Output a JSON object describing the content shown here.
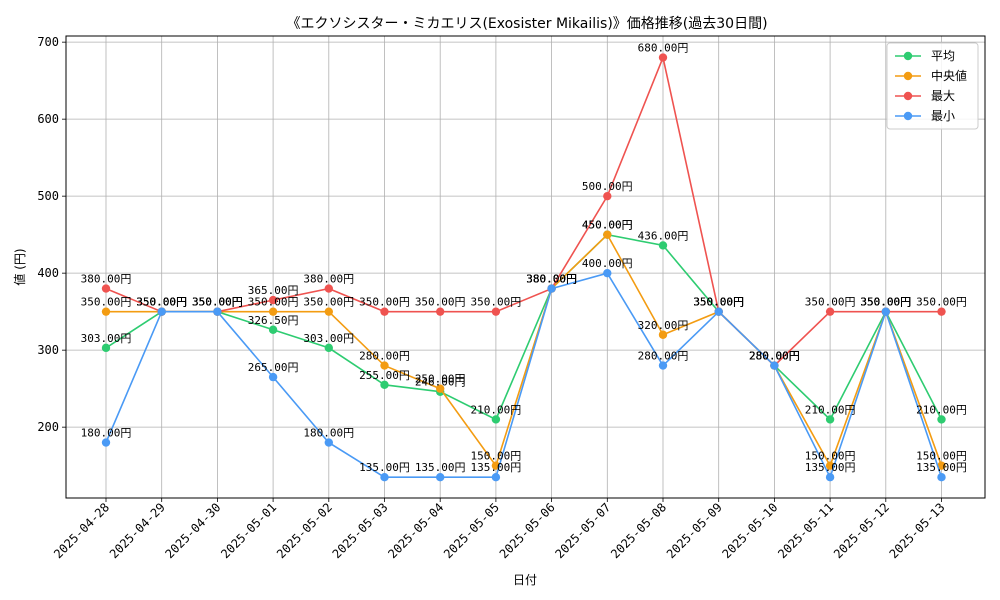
{
  "chart_data": {
    "type": "line",
    "title": "《エクソシスター・ミカエリス(Exosister Mikailis)》価格推移(過去30日間)",
    "xlabel": "日付",
    "ylabel": "値 (円)",
    "categories": [
      "2025-04-28",
      "2025-04-29",
      "2025-04-30",
      "2025-05-01",
      "2025-05-02",
      "2025-05-03",
      "2025-05-04",
      "2025-05-05",
      "2025-05-06",
      "2025-05-07",
      "2025-05-08",
      "2025-05-09",
      "2025-05-10",
      "2025-05-11",
      "2025-05-12",
      "2025-05-13"
    ],
    "yticks": [
      200,
      300,
      400,
      500,
      600,
      700
    ],
    "ylim": [
      108,
      708
    ],
    "grid": true,
    "legend_position": "top-right",
    "label_suffix": "円",
    "series": [
      {
        "name": "平均",
        "color": "#2ecc71",
        "values": [
          303,
          350,
          350,
          326.5,
          303,
          255,
          246,
          210,
          380,
          450,
          436,
          350,
          280,
          210,
          350,
          210
        ],
        "labels": [
          "303.00円",
          "350.00円",
          "350.00円",
          "326.50円",
          "303.00円",
          "255.00円",
          "246.00円",
          "210.00円",
          "380.00円",
          "450.00円",
          "436.00円",
          "350.00円",
          "280.00円",
          "210.00円",
          "350.00円",
          "210.00円"
        ]
      },
      {
        "name": "中央値",
        "color": "#f39c12",
        "values": [
          350,
          350,
          350,
          350,
          350,
          280,
          250,
          150,
          380,
          450,
          320,
          350,
          280,
          150,
          350,
          150
        ],
        "labels": [
          "350.00円",
          "350.00円",
          "350.00円",
          "350.00円",
          "350.00円",
          "280.00円",
          "250.00円",
          "150.00円",
          "380.00円",
          "450.00円",
          "320.00円",
          "350.00円",
          "280.00円",
          "150.00円",
          "350.00円",
          "150.00円"
        ]
      },
      {
        "name": "最大",
        "color": "#ef5350",
        "values": [
          380,
          350,
          350,
          365,
          380,
          350,
          350,
          350,
          380,
          500,
          680,
          350,
          280,
          350,
          350,
          350
        ],
        "labels": [
          "380.00円",
          "350.00円",
          "350.00円",
          "365.00円",
          "380.00円",
          "350.00円",
          "350.00円",
          "350.00円",
          "380.00円",
          "500.00円",
          "680.00円",
          "350.00円",
          "280.00円",
          "350.00円",
          "350.00円",
          "350.00円"
        ]
      },
      {
        "name": "最小",
        "color": "#4a9af5",
        "values": [
          180,
          350,
          350,
          265,
          180,
          135,
          135,
          135,
          380,
          400,
          280,
          350,
          280,
          135,
          350,
          135
        ],
        "labels": [
          "180.00円",
          "350.00円",
          "350.00円",
          "265.00円",
          "180.00円",
          "135.00円",
          "135.00円",
          "135.00円",
          "380.00円",
          "400.00円",
          "280.00円",
          "350.00円",
          "280.00円",
          "135.00円",
          "350.00円",
          "135.00円"
        ]
      }
    ]
  }
}
